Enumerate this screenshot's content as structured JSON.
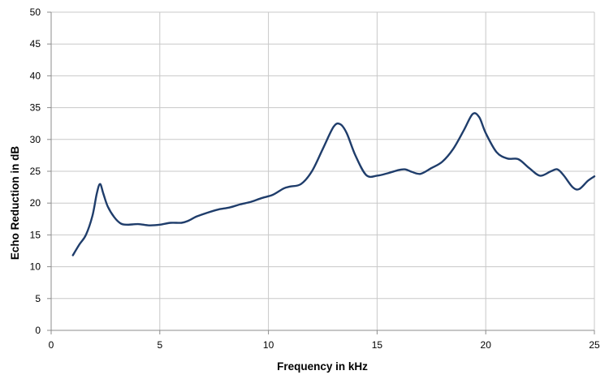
{
  "chart_data": {
    "type": "line",
    "title": "",
    "xlabel": "Frequency in kHz",
    "ylabel": "Echo Reduction in dB",
    "xlim": [
      0,
      25
    ],
    "ylim": [
      0,
      50
    ],
    "xticks": [
      0,
      5,
      10,
      15,
      20,
      25
    ],
    "yticks": [
      0,
      5,
      10,
      15,
      20,
      25,
      30,
      35,
      40,
      45,
      50
    ],
    "grid": true,
    "legend": "none",
    "series": [
      {
        "color": "#1f3d6b",
        "x": [
          1.0,
          1.3,
          1.6,
          1.9,
          2.1,
          2.25,
          2.4,
          2.6,
          2.9,
          3.2,
          3.5,
          4.0,
          4.5,
          5.0,
          5.5,
          6.0,
          6.3,
          6.7,
          7.2,
          7.7,
          8.2,
          8.7,
          9.2,
          9.7,
          10.2,
          10.7,
          11.0,
          11.5,
          12.0,
          12.5,
          13.0,
          13.3,
          13.6,
          14.0,
          14.5,
          15.0,
          15.5,
          16.0,
          16.3,
          16.6,
          17.0,
          17.5,
          18.0,
          18.5,
          19.0,
          19.4,
          19.7,
          20.0,
          20.5,
          21.0,
          21.5,
          22.0,
          22.5,
          23.0,
          23.3,
          23.6,
          24.0,
          24.3,
          24.7,
          25.0
        ],
        "y": [
          11.8,
          13.5,
          15.0,
          18.0,
          21.5,
          23.0,
          21.5,
          19.5,
          17.8,
          16.8,
          16.6,
          16.7,
          16.5,
          16.6,
          16.9,
          16.9,
          17.2,
          17.9,
          18.5,
          19.0,
          19.3,
          19.8,
          20.2,
          20.8,
          21.3,
          22.3,
          22.6,
          23.0,
          25.0,
          28.5,
          32.0,
          32.4,
          31.0,
          27.5,
          24.4,
          24.3,
          24.7,
          25.2,
          25.3,
          24.9,
          24.6,
          25.5,
          26.5,
          28.5,
          31.5,
          34.0,
          33.5,
          31.0,
          28.0,
          27.0,
          26.9,
          25.5,
          24.3,
          25.0,
          25.3,
          24.3,
          22.5,
          22.2,
          23.5,
          24.2
        ]
      }
    ]
  }
}
